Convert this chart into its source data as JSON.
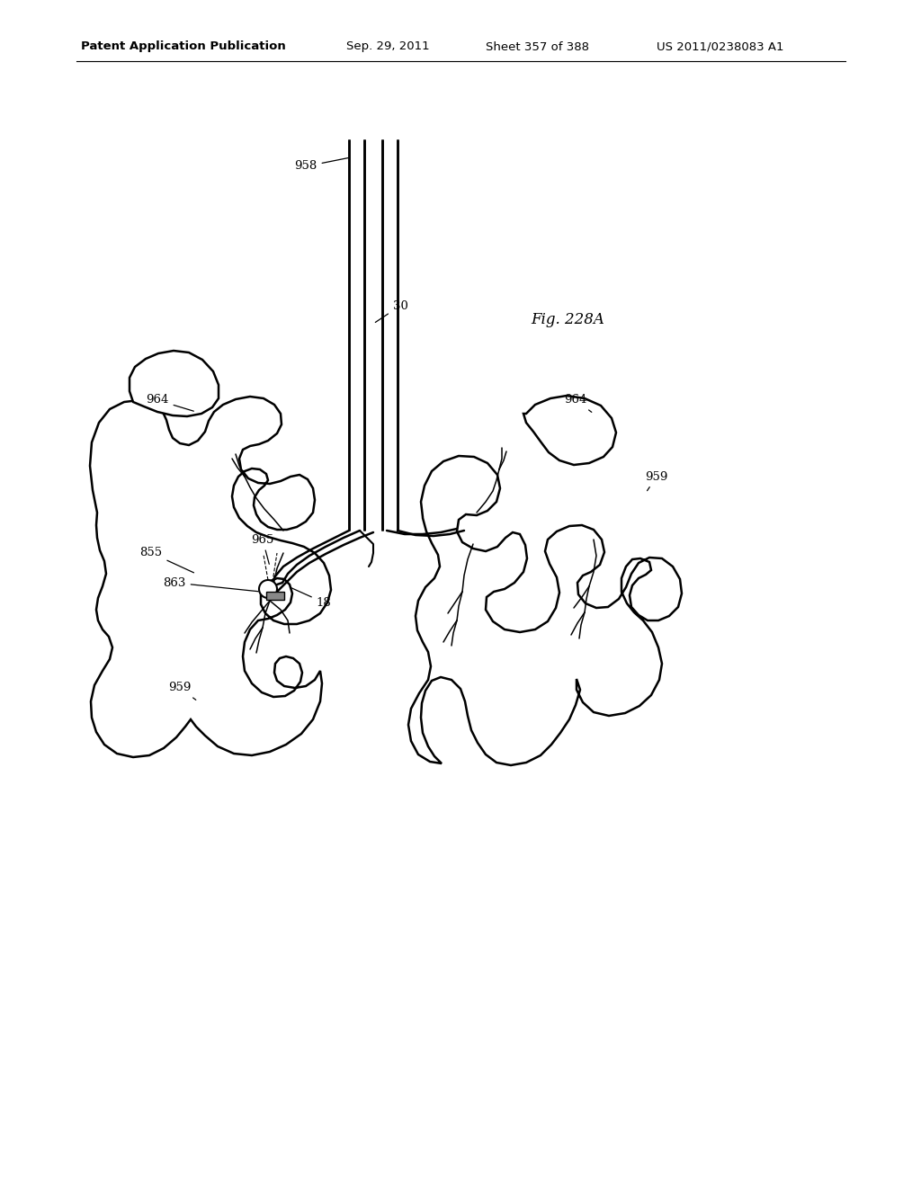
{
  "background_color": "#ffffff",
  "header_text": "Patent Application Publication",
  "header_date": "Sep. 29, 2011",
  "header_sheet": "Sheet 357 of 388",
  "header_patent": "US 2011/0238083 A1",
  "fig_label": "Fig. 228A",
  "line_color": "#000000",
  "lw_main": 1.8,
  "lw_detail": 1.1
}
